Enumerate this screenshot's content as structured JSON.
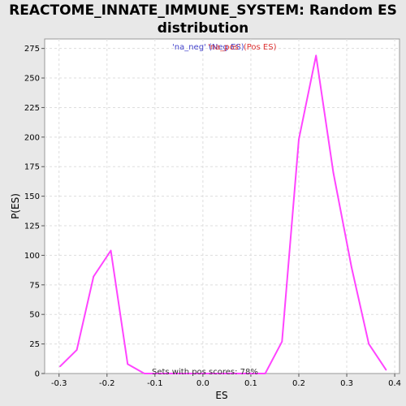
{
  "chart_data": {
    "type": "line",
    "title_line1": "REACTOME_INNATE_IMMUNE_SYSTEM: Random ES",
    "title_line2": "distribution",
    "xlabel": "ES",
    "ylabel": "P(ES)",
    "xlim": [
      -0.33,
      0.41
    ],
    "ylim": [
      0,
      283
    ],
    "xticks": [
      "-0.3",
      "-0.2",
      "-0.1",
      "0.0",
      "0.1",
      "0.2",
      "0.3",
      "0.4"
    ],
    "xtick_values": [
      -0.3,
      -0.2,
      -0.1,
      0.0,
      0.1,
      0.2,
      0.3,
      0.4
    ],
    "yticks": [
      "0",
      "25",
      "50",
      "75",
      "100",
      "125",
      "150",
      "175",
      "200",
      "225",
      "250",
      "275"
    ],
    "ytick_values": [
      0,
      25,
      50,
      75,
      100,
      125,
      150,
      175,
      200,
      225,
      250,
      275
    ],
    "grid": true,
    "legend": {
      "neg_label": "'na_neg' (Neg ES)",
      "pos_label": "'na_pos' (Pos ES)",
      "neg_color": "#4444cc",
      "pos_color": "#dd3333"
    },
    "annotation": "Sets with pos scores: 78%",
    "series": [
      {
        "color": "#ff44ff",
        "x": [
          -0.298,
          -0.263,
          -0.228,
          -0.192,
          -0.157,
          -0.122,
          -0.087,
          -0.052,
          -0.017,
          0.018,
          0.054,
          0.089,
          0.13,
          0.165,
          0.2,
          0.236,
          0.272,
          0.31,
          0.346,
          0.382
        ],
        "y": [
          6,
          20,
          82,
          104,
          8,
          0,
          0,
          0,
          0,
          0,
          0,
          0,
          0,
          27,
          198,
          269,
          170,
          90,
          25,
          3
        ]
      }
    ]
  }
}
